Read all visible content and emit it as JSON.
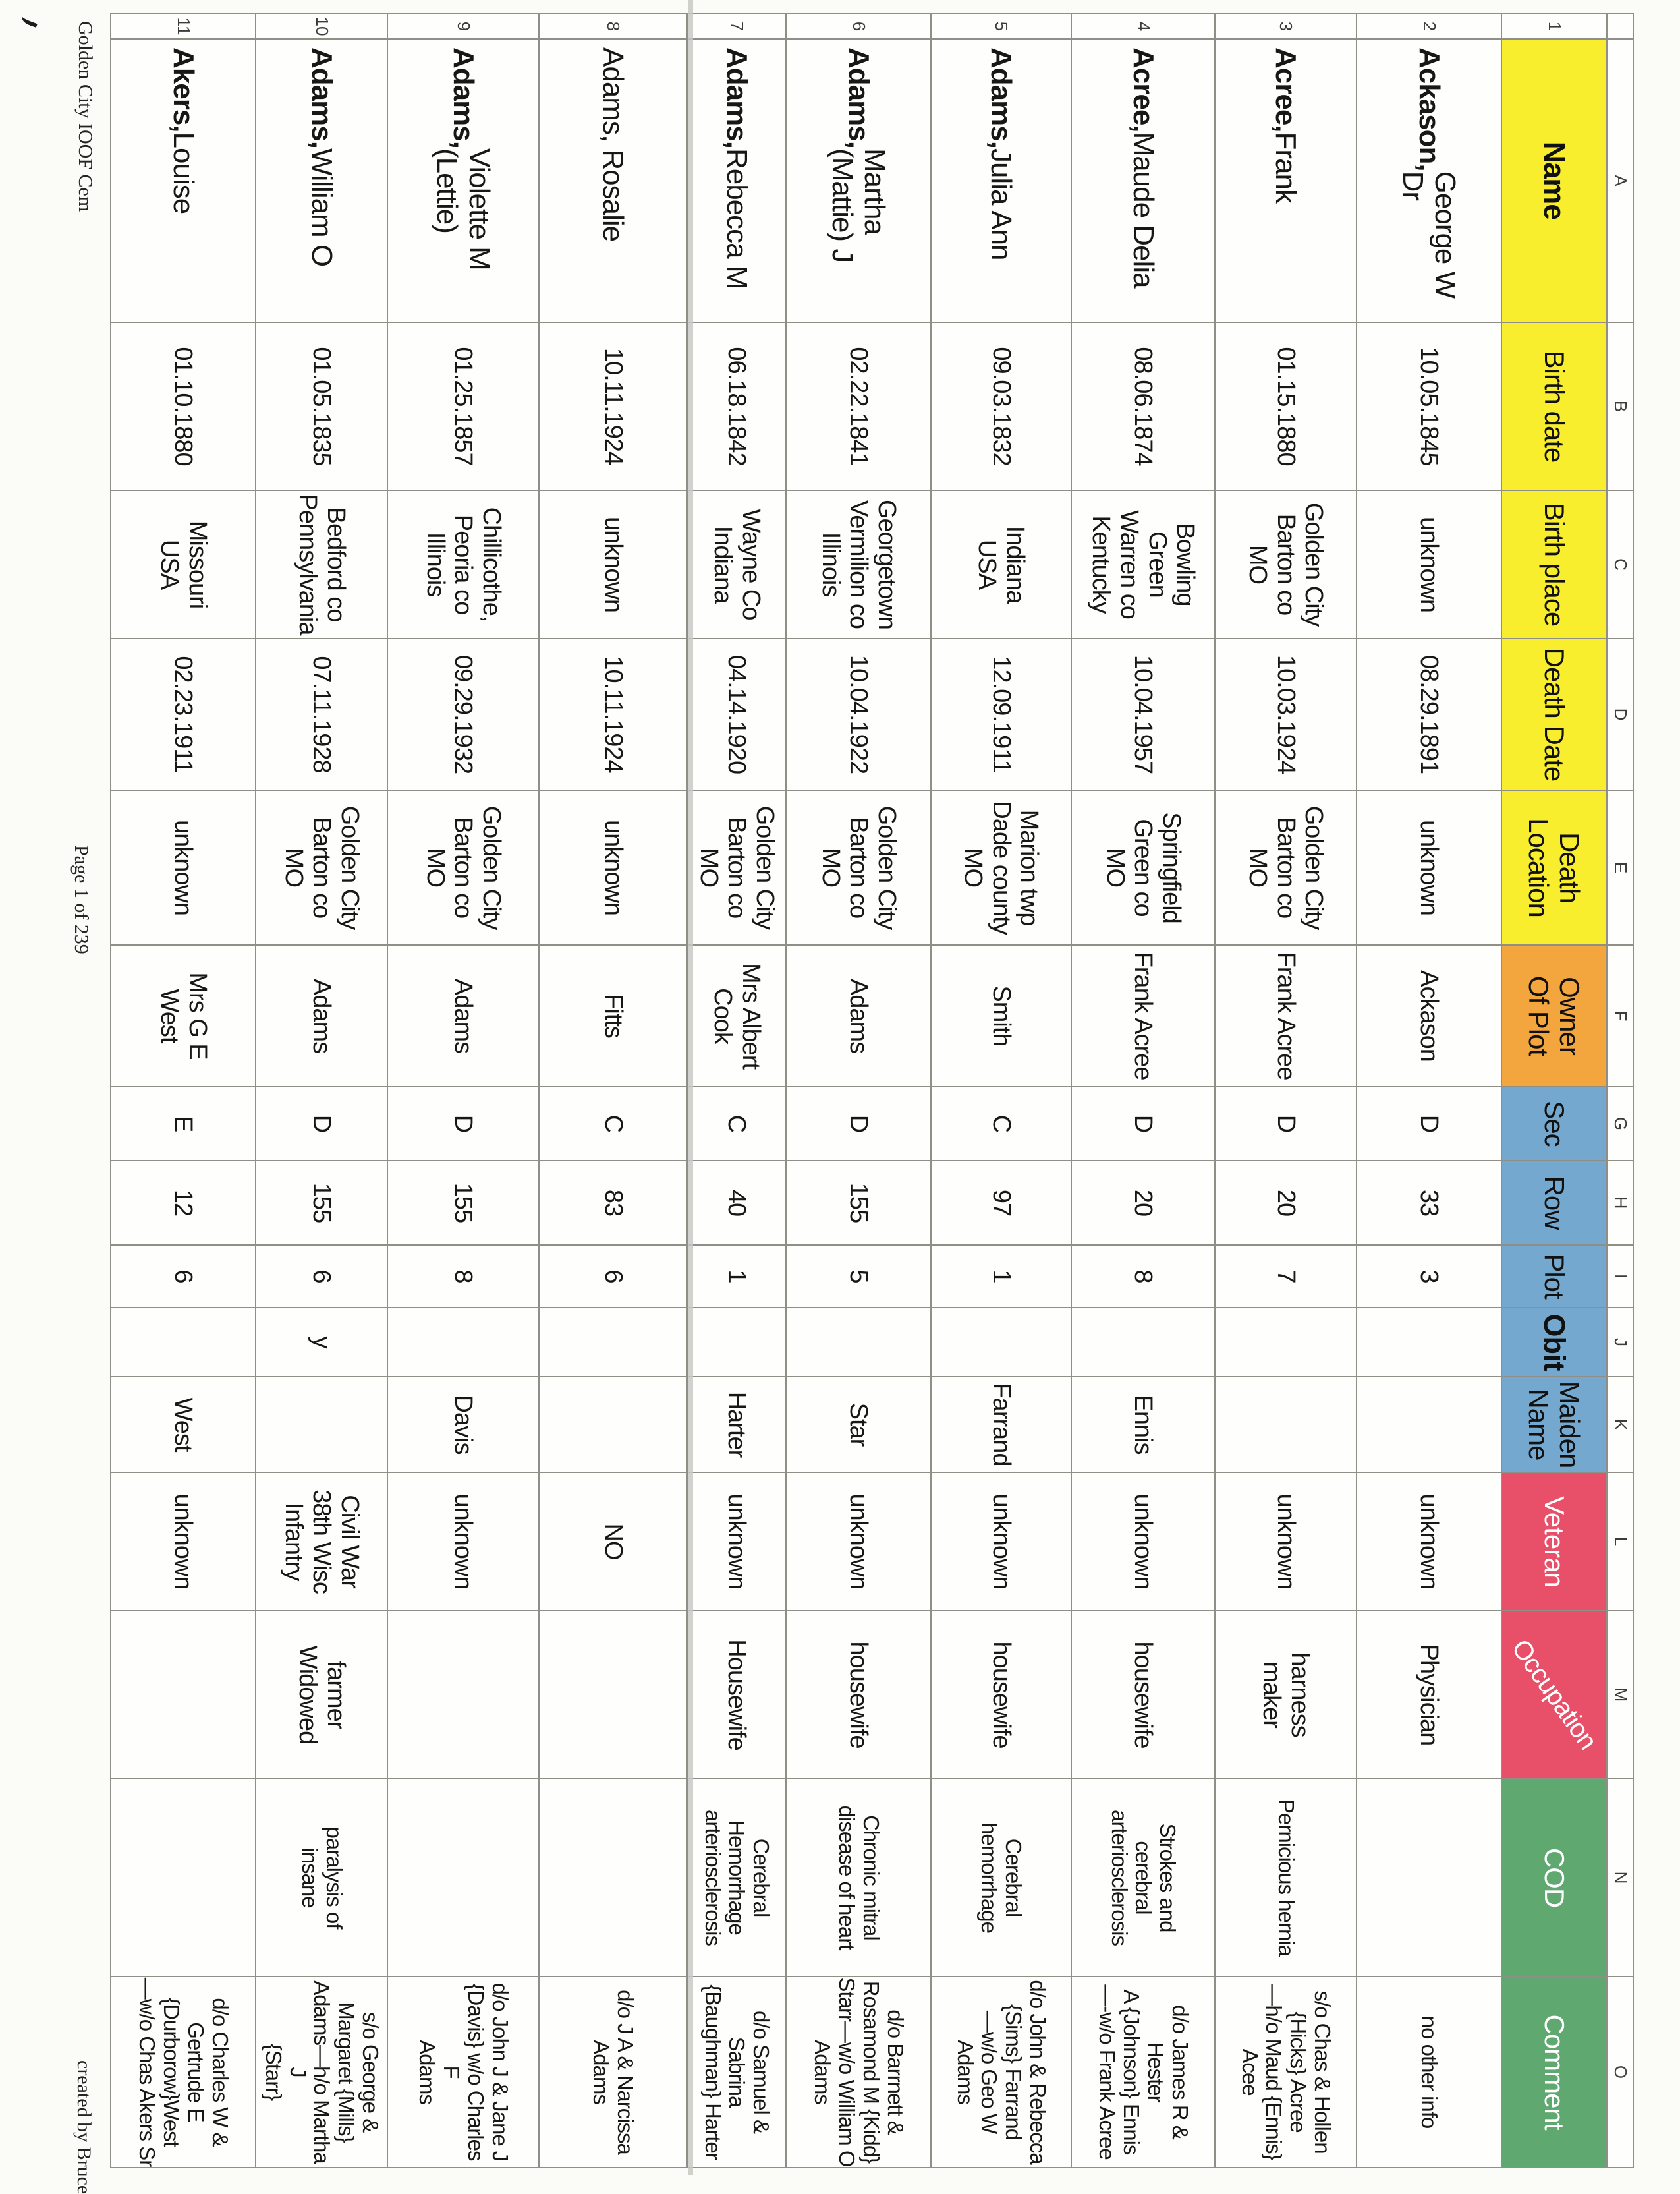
{
  "page": {
    "footer_left": "Golden City IOOF Cem",
    "footer_center": "Page 1 of 239",
    "footer_right": "created by Bruce"
  },
  "colors": {
    "yellow": "#f8ee2e",
    "orange": "#f4a63e",
    "blue": "#74a8cf",
    "red": "#e84f68",
    "green": "#5fa870",
    "grid": "#8f8f88",
    "fold": "#c9c9c4"
  },
  "columns": {
    "letters": [
      "A",
      "B",
      "C",
      "D",
      "E",
      "F",
      "G",
      "H",
      "I",
      "J",
      "K",
      "L",
      "M",
      "N",
      "O"
    ],
    "headers": [
      {
        "key": "name",
        "label": "Name",
        "color": "yellow",
        "fg": "#111111",
        "bold": true
      },
      {
        "key": "birth-date",
        "label": "Birth date",
        "color": "yellow",
        "fg": "#111111",
        "bold": false
      },
      {
        "key": "birth-place",
        "label": "Birth place",
        "color": "yellow",
        "fg": "#111111",
        "bold": false
      },
      {
        "key": "death-date",
        "label": "Death Date",
        "color": "yellow",
        "fg": "#111111",
        "bold": false
      },
      {
        "key": "death-location",
        "label": "Death\nLocation",
        "color": "yellow",
        "fg": "#111111",
        "bold": false
      },
      {
        "key": "owner-of-plot",
        "label": "Owner\nOf Plot",
        "color": "orange",
        "fg": "#111111",
        "bold": false
      },
      {
        "key": "sec",
        "label": "Sec",
        "color": "blue",
        "fg": "#111111",
        "bold": false
      },
      {
        "key": "row",
        "label": "Row",
        "color": "blue",
        "fg": "#111111",
        "bold": false
      },
      {
        "key": "plot",
        "label": "Plot",
        "color": "blue",
        "fg": "#111111",
        "bold": false
      },
      {
        "key": "obit",
        "label": "Obit",
        "color": "blue",
        "fg": "#111111",
        "bold": true
      },
      {
        "key": "maiden-name",
        "label": "Maiden\nName",
        "color": "blue",
        "fg": "#111111",
        "bold": false
      },
      {
        "key": "veteran",
        "label": "Veteran",
        "color": "red",
        "fg": "#ffffff",
        "bold": false
      },
      {
        "key": "occupation",
        "label": "Occupation",
        "color": "red",
        "fg": "#ffffff",
        "bold": false,
        "diagonal": true
      },
      {
        "key": "cod",
        "label": "COD",
        "color": "green",
        "fg": "#ffffff",
        "bold": false
      },
      {
        "key": "comment",
        "label": "Comment",
        "color": "green",
        "fg": "#ffffff",
        "bold": false
      }
    ],
    "header_row_number": "1"
  },
  "rows": [
    {
      "num": "2",
      "name": {
        "bold": "Ackason,",
        "rest": " George W\nDr"
      },
      "birth_date": "10.05.1845",
      "birth_place": "unknown",
      "death_date": "08.29.1891",
      "death_location": "unknown",
      "owner": "Ackason",
      "sec": "D",
      "row": "33",
      "plot": "3",
      "obit": "",
      "maiden": "",
      "veteran": "unknown",
      "occupation": "Physician",
      "cod": "",
      "comment": "no other info"
    },
    {
      "num": "3",
      "name": {
        "bold": "Acree,",
        "rest": " Frank"
      },
      "birth_date": "01.15.1880",
      "birth_place": "Golden City\nBarton co\nMO",
      "death_date": "10.03.1924",
      "death_location": "Golden City\nBarton co\nMO",
      "owner": "Frank Acree",
      "sec": "D",
      "row": "20",
      "plot": "7",
      "obit": "",
      "maiden": "",
      "veteran": "unknown",
      "occupation": "harness\nmaker",
      "cod": "Pernicious hernia",
      "comment": "s/o Chas & Hollen\n{Hicks} Acree\n—h/o Maud {Ennis}\nAcee"
    },
    {
      "num": "4",
      "name": {
        "bold": "Acree,",
        "rest": " Maude Delia"
      },
      "birth_date": "08.06.1874",
      "birth_place": "Bowling\nGreen\nWarren co\nKentucky",
      "death_date": "10.04.1957",
      "death_location": "Springfield\nGreen co\nMO",
      "owner": "Frank Acree",
      "sec": "D",
      "row": "20",
      "plot": "8",
      "obit": "",
      "maiden": "Ennis",
      "veteran": "unknown",
      "occupation": "housewife",
      "cod": "Strokes and\ncerebral\narteriosclerosis",
      "comment": "d/o James R & Hester\nA {Johnson} Ennis\n—-w/o Frank Acree"
    },
    {
      "num": "5",
      "name": {
        "bold": "Adams,",
        "rest": " Julia Ann"
      },
      "birth_date": "09.03.1832",
      "birth_place": "Indiana\nUSA",
      "death_date": "12.09.1911",
      "death_location": "Marion twp\nDade county\nMO",
      "owner": "Smith",
      "sec": "C",
      "row": "97",
      "plot": "1",
      "obit": "",
      "maiden": "Farrand",
      "veteran": "unknown",
      "occupation": "housewife",
      "cod": "Cerebral\nhemorrhage",
      "comment": "d/o John & Rebecca\n{Sims} Farrand\n—w/o Geo W Adams"
    },
    {
      "num": "6",
      "name": {
        "bold": "Adams,",
        "rest": " Martha\n(Mattie) J"
      },
      "birth_date": "02.22.1841",
      "birth_place": "Georgetown\nVermilion co\nIllinois",
      "death_date": "10.04.1922",
      "death_location": "Golden City\nBarton co\nMO",
      "owner": "Adams",
      "sec": "D",
      "row": "155",
      "plot": "5",
      "obit": "",
      "maiden": "Star",
      "veteran": "unknown",
      "occupation": "housewife",
      "cod": "Chronic mitral\ndisease of heart",
      "comment": "d/o Barrnett &\nRosamond M {Kidd}\nStarr—w/o William O\nAdams"
    },
    {
      "num": "7",
      "name": {
        "bold": "Adams,",
        "rest": " Rebecca M"
      },
      "birth_date": "06.18.1842",
      "birth_place": "Wayne Co\nIndiana",
      "death_date": "04.14.1920",
      "death_location": "Golden City\nBarton co\nMO",
      "owner": "Mrs Albert\nCook",
      "sec": "C",
      "row": "40",
      "plot": "1",
      "obit": "",
      "maiden": "Harter",
      "veteran": "unknown",
      "occupation": "Housewife",
      "cod": "Cerebral\nHemorrhage\narteriosclerosis",
      "comment": "d/o Samuel & Sabrina\n{Baughman} Harter"
    },
    {
      "num": "8",
      "name": {
        "bold": "",
        "rest": "Adams, Rosalie"
      },
      "birth_date": "10.11.1924",
      "birth_place": "unknown",
      "death_date": "10.11.1924",
      "death_location": "unknown",
      "owner": "Fitts",
      "sec": "C",
      "row": "83",
      "plot": "6",
      "obit": "",
      "maiden": "",
      "veteran": "NO",
      "occupation": "",
      "cod": "",
      "comment": "d/o J A & Narcissa\nAdams"
    },
    {
      "num": "9",
      "name": {
        "bold": "Adams,",
        "rest": " Violette M\n(Lettie)"
      },
      "birth_date": "01.25.1857",
      "birth_place": "Chillicothe,\nPeoria co\nIllinois",
      "death_date": "09.29.1932",
      "death_location": "Golden City\nBarton co\nMO",
      "owner": "Adams",
      "sec": "D",
      "row": "155",
      "plot": "8",
      "obit": "",
      "maiden": "Davis",
      "veteran": "unknown",
      "occupation": "",
      "cod": "",
      "comment": "d/o John J & Jane J\n{Davis} w/o Charles F\nAdams"
    },
    {
      "num": "10",
      "name": {
        "bold": "Adams,",
        "rest": " William O"
      },
      "birth_date": "01.05.1835",
      "birth_place": "Bedford co\nPennsylvania",
      "death_date": "07.11.1928",
      "death_location": "Golden City\nBarton co\nMO",
      "owner": "Adams",
      "sec": "D",
      "row": "155",
      "plot": "6",
      "obit": "y",
      "maiden": "",
      "veteran": "Civil War\n38th Wisc\nInfantry",
      "occupation": "farmer\nWidowed",
      "cod": "paralysis of\ninsane",
      "comment": "s/o George &\nMargaret {Mills}\nAdams—h/o Martha J\n{Starr}"
    },
    {
      "num": "11",
      "name": {
        "bold": "Akers,",
        "rest": " Louise"
      },
      "birth_date": "01.10.1880",
      "birth_place": "Missouri\nUSA",
      "death_date": "02.23.1911",
      "death_location": "unknown",
      "owner": "Mrs G E\nWest",
      "sec": "E",
      "row": "12",
      "plot": "6",
      "obit": "",
      "maiden": "West",
      "veteran": "unknown",
      "occupation": "",
      "cod": "",
      "comment": "d/o Charles W &\nGertrude E\n{Durborow}West\n—w/o Chas Akers Sr"
    }
  ]
}
